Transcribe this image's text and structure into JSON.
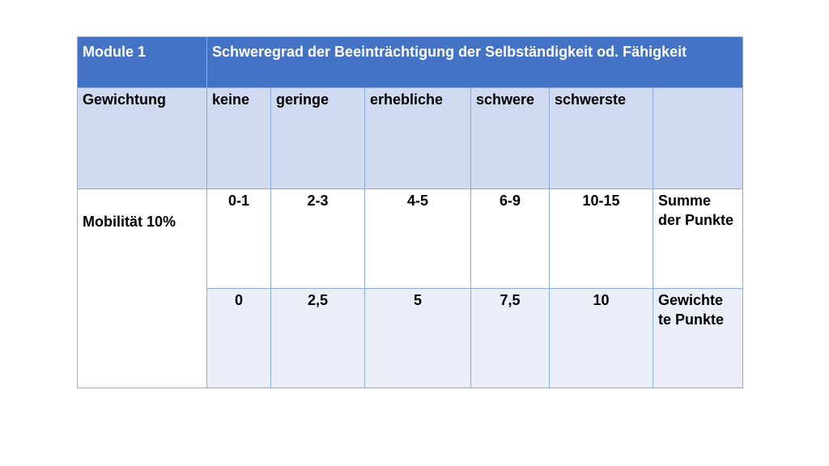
{
  "header": {
    "module": "Module 1",
    "title": "Schweregrad der Beeinträchtigung der Selbständigkeit od. Fähigkeit"
  },
  "weights": {
    "label": "Gewichtung",
    "levels": [
      "keine",
      "geringe",
      "erhebliche",
      "schwere",
      "schwerste"
    ]
  },
  "rows": {
    "category": "Mobilität 10%",
    "points": [
      "0-1",
      "2-3",
      "4-5",
      "6-9",
      "10-15"
    ],
    "points_label": "Summe der Punkte",
    "weighted": [
      "0",
      "2,5",
      "5",
      "7,5",
      "10"
    ],
    "weighted_label": "Gewichte te Punkte"
  }
}
